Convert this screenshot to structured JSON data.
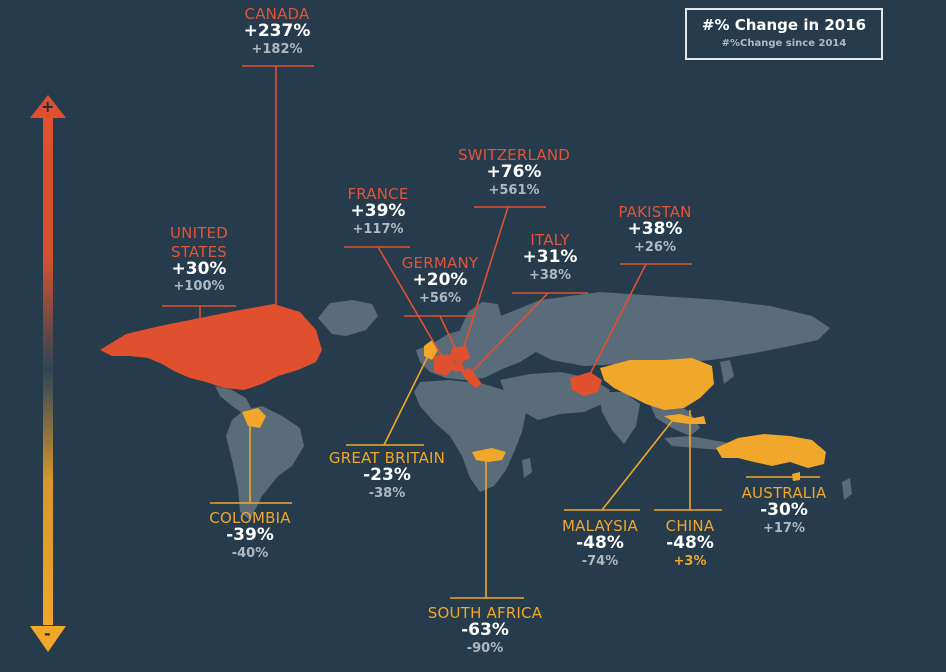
{
  "legend": {
    "title": "#% Change in 2016",
    "subtitle": "#%Change since 2014"
  },
  "scale": {
    "plus_label": "+",
    "minus_label": "-"
  },
  "colors": {
    "background": "#263b4b",
    "land": "#5a6c7a",
    "increase": "#e0502f",
    "decrease": "#f0a72a",
    "neutral_text": "#aeb9c2"
  },
  "countries": {
    "canada": {
      "name": "CANADA",
      "change_2016": "+237%",
      "change_since_2014": "+182%"
    },
    "united_states": {
      "name": "UNITED STATES",
      "name_line1": "UNITED",
      "name_line2": "STATES",
      "change_2016": "+30%",
      "change_since_2014": "+100%"
    },
    "france": {
      "name": "FRANCE",
      "change_2016": "+39%",
      "change_since_2014": "+117%"
    },
    "switzerland": {
      "name": "SWITZERLAND",
      "change_2016": "+76%",
      "change_since_2014": "+561%"
    },
    "germany": {
      "name": "GERMANY",
      "change_2016": "+20%",
      "change_since_2014": "+56%"
    },
    "italy": {
      "name": "ITALY",
      "change_2016": "+31%",
      "change_since_2014": "+38%"
    },
    "pakistan": {
      "name": "PAKISTAN",
      "change_2016": "+38%",
      "change_since_2014": "+26%"
    },
    "great_britain": {
      "name": "GREAT BRITAIN",
      "change_2016": "-23%",
      "change_since_2014": "-38%"
    },
    "colombia": {
      "name": "COLOMBIA",
      "change_2016": "-39%",
      "change_since_2014": "-40%"
    },
    "south_africa": {
      "name": "SOUTH AFRICA",
      "change_2016": "-63%",
      "change_since_2014": "-90%"
    },
    "malaysia": {
      "name": "MALAYSIA",
      "change_2016": "-48%",
      "change_since_2014": "-74%"
    },
    "china": {
      "name": "CHINA",
      "change_2016": "-48%",
      "change_since_2014": "+3%"
    },
    "australia": {
      "name": "AUSTRALIA",
      "change_2016": "-30%",
      "change_since_2014": "+17%"
    }
  }
}
